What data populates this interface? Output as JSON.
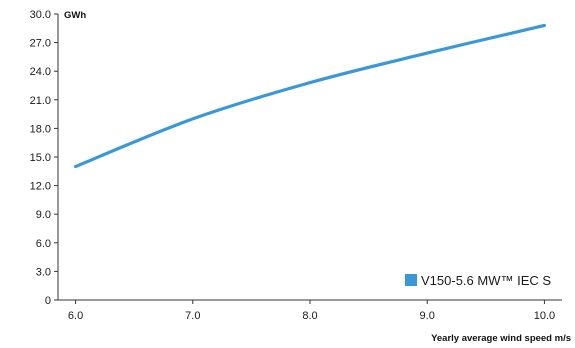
{
  "chart_data": {
    "type": "line",
    "x": [
      6.0,
      7.0,
      8.0,
      9.0,
      10.0
    ],
    "x_tick_labels": [
      "6.0",
      "7.0",
      "8.0",
      "9.0",
      "10.0"
    ],
    "y_tick_labels": [
      "0",
      "3.0",
      "6.0",
      "9.0",
      "12.0",
      "15.0",
      "18.0",
      "21.0",
      "24.0",
      "27.0",
      "30.0"
    ],
    "y_ticks": [
      0,
      3,
      6,
      9,
      12,
      15,
      18,
      21,
      24,
      27,
      30
    ],
    "series": [
      {
        "name": "V150-5.6 MW™ IEC S",
        "values": [
          14.0,
          19.0,
          22.8,
          25.9,
          28.8
        ],
        "color": "#3a98d8"
      }
    ],
    "xlabel": "Yearly average wind speed m/s",
    "ylabel": "GWh",
    "xlim": [
      5.85,
      10.15
    ],
    "ylim": [
      0,
      30
    ],
    "grid": false,
    "legend_position": "bottom-right"
  }
}
